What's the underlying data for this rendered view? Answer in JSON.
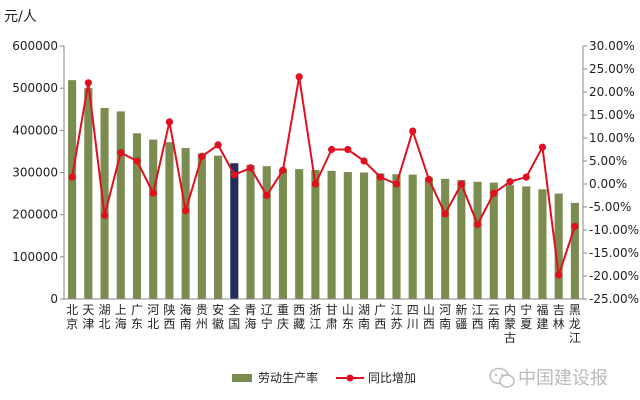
{
  "chart_data": {
    "type": "bar",
    "y_unit_label": "元/人",
    "categories": [
      [
        "北",
        "京"
      ],
      [
        "天",
        "津"
      ],
      [
        "湖",
        "北"
      ],
      [
        "上",
        "海"
      ],
      [
        "广",
        "东"
      ],
      [
        "河",
        "北"
      ],
      [
        "陕",
        "西"
      ],
      [
        "海",
        "南"
      ],
      [
        "贵",
        "州"
      ],
      [
        "安",
        "徽"
      ],
      [
        "全",
        "国"
      ],
      [
        "青",
        "海"
      ],
      [
        "辽",
        "宁"
      ],
      [
        "重",
        "庆"
      ],
      [
        "西",
        "藏"
      ],
      [
        "浙",
        "江"
      ],
      [
        "甘",
        "肃"
      ],
      [
        "山",
        "东"
      ],
      [
        "湖",
        "南"
      ],
      [
        "广",
        "西"
      ],
      [
        "江",
        "苏"
      ],
      [
        "四",
        "川"
      ],
      [
        "山",
        "西"
      ],
      [
        "河",
        "南"
      ],
      [
        "新",
        "疆"
      ],
      [
        "江",
        "西"
      ],
      [
        "云",
        "南"
      ],
      [
        "内",
        "蒙",
        "古"
      ],
      [
        "宁",
        "夏"
      ],
      [
        "福",
        "建"
      ],
      [
        "吉",
        "林"
      ],
      [
        "黑",
        "龙",
        "江"
      ]
    ],
    "highlight_category": "全国",
    "series": [
      {
        "name": "劳动生产率",
        "kind": "bar",
        "axis": "left",
        "color": "#7a8c4f",
        "highlight_color": "#1f2f5a",
        "values": [
          519000,
          500000,
          453000,
          445000,
          393000,
          378000,
          372000,
          358000,
          345000,
          340000,
          322000,
          318000,
          315000,
          308000,
          308000,
          306000,
          304000,
          301000,
          300000,
          298000,
          296000,
          295000,
          288000,
          285000,
          282000,
          278000,
          276000,
          270000,
          267000,
          260000,
          250000,
          228000
        ]
      },
      {
        "name": "同比增加",
        "kind": "line",
        "axis": "right",
        "color": "#e01020",
        "values": [
          0.015,
          0.22,
          -0.068,
          0.068,
          0.05,
          -0.02,
          0.135,
          -0.058,
          0.06,
          0.085,
          0.02,
          0.035,
          -0.025,
          0.03,
          0.233,
          0.0,
          0.075,
          0.075,
          0.05,
          0.015,
          0.0,
          0.115,
          0.01,
          -0.065,
          0.0,
          -0.088,
          -0.02,
          0.005,
          0.015,
          0.08,
          -0.198,
          -0.092
        ]
      }
    ],
    "y_left": {
      "min": 0,
      "max": 600000,
      "step": 100000,
      "ticks": [
        "0",
        "100000",
        "200000",
        "300000",
        "400000",
        "500000",
        "600000"
      ]
    },
    "y_right": {
      "min": -0.25,
      "max": 0.3,
      "step": 0.05,
      "ticks": [
        "-25.00%",
        "-20.00%",
        "-15.00%",
        "-10.00%",
        "-5.00%",
        "0.00%",
        "5.00%",
        "10.00%",
        "15.00%",
        "20.00%",
        "25.00%",
        "30.00%"
      ]
    },
    "grid": false,
    "legend_position": "bottom"
  },
  "watermark": {
    "icon": "wechat-icon",
    "text": "中国建设报"
  }
}
